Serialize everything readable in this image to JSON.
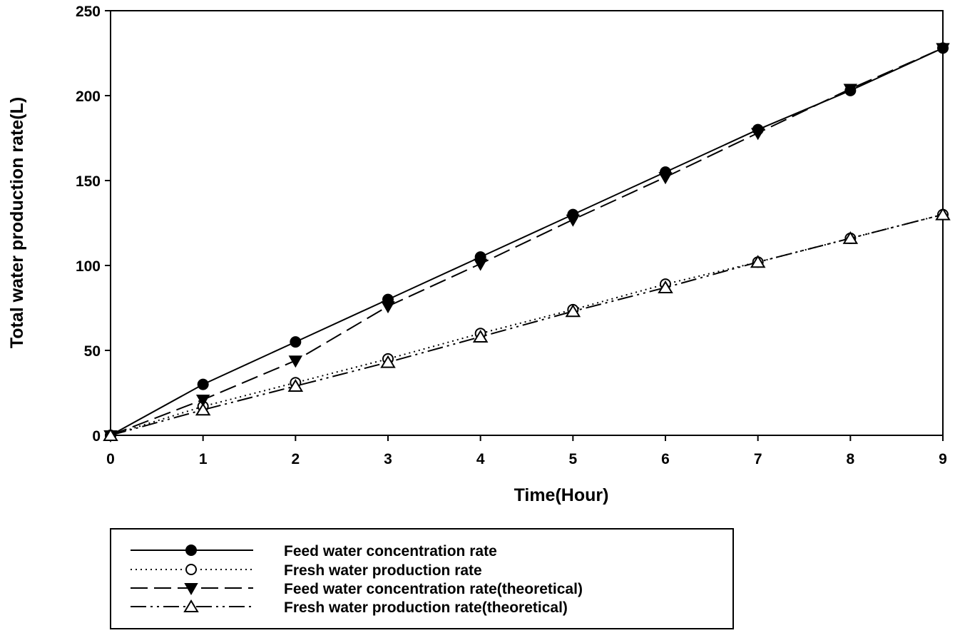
{
  "chart_data": {
    "type": "line",
    "title": "",
    "xlabel": "Time(Hour)",
    "ylabel": "Total water production rate(L)",
    "xlim": [
      0,
      9
    ],
    "ylim": [
      0,
      250
    ],
    "x_ticks": [
      0,
      1,
      2,
      3,
      4,
      5,
      6,
      7,
      8,
      9
    ],
    "y_ticks": [
      0,
      50,
      100,
      150,
      200,
      250
    ],
    "grid": false,
    "legend_position": "bottom",
    "x": [
      0,
      1,
      2,
      3,
      4,
      5,
      6,
      7,
      8,
      9
    ],
    "series": [
      {
        "name": "Feed water concentration rate",
        "values": [
          0,
          30,
          55,
          80,
          105,
          130,
          155,
          180,
          203,
          228
        ],
        "marker": "filled-circle",
        "line": "solid"
      },
      {
        "name": "Fresh water production rate",
        "values": [
          0,
          17,
          31,
          45,
          60,
          74,
          89,
          102,
          116,
          130
        ],
        "marker": "open-circle",
        "line": "dotted"
      },
      {
        "name": "Feed water concentration rate(theoretical)",
        "values": [
          0,
          21,
          44,
          76,
          101,
          127,
          152,
          178,
          204,
          228
        ],
        "marker": "filled-triangle-down",
        "line": "dashed"
      },
      {
        "name": "Fresh water production rate(theoretical)",
        "values": [
          0,
          15,
          29,
          43,
          58,
          73,
          87,
          102,
          116,
          130
        ],
        "marker": "open-triangle-up",
        "line": "dash-dot-dot"
      }
    ]
  }
}
